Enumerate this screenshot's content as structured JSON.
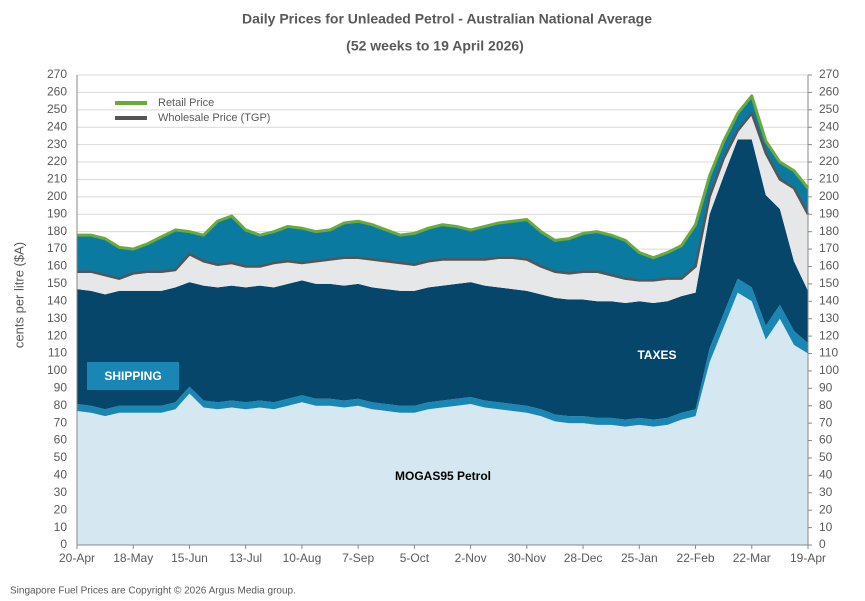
{
  "chart_data": {
    "type": "stacked-area",
    "title": "Daily Prices for Unleaded Petrol - Australian National Average",
    "subtitle": "(52 weeks to 19 April 2026)",
    "ylabel": "cents per litre ($A)",
    "footer": "Singapore Fuel Prices are Copyright © 2026 Argus Media group.",
    "categories": [
      "20-Apr",
      null,
      null,
      null,
      "18-May",
      null,
      null,
      null,
      "15-Jun",
      null,
      null,
      null,
      "13-Jul",
      null,
      null,
      null,
      "10-Aug",
      null,
      null,
      null,
      "7-Sep",
      null,
      null,
      null,
      "5-Oct",
      null,
      null,
      null,
      "2-Nov",
      null,
      null,
      null,
      "30-Nov",
      null,
      null,
      null,
      "28-Dec",
      null,
      null,
      null,
      "25-Jan",
      null,
      null,
      null,
      "22-Feb",
      null,
      null,
      null,
      "22-Mar",
      null,
      null,
      null,
      "19-Apr"
    ],
    "ylim": [
      0,
      270
    ],
    "yticks": [
      0,
      10,
      20,
      30,
      40,
      50,
      60,
      70,
      80,
      90,
      100,
      110,
      120,
      130,
      140,
      150,
      160,
      170,
      180,
      190,
      200,
      210,
      220,
      230,
      240,
      250,
      260,
      270
    ],
    "y2lim": [
      0,
      270
    ],
    "y2ticks": [
      0,
      10,
      20,
      30,
      40,
      50,
      60,
      70,
      80,
      90,
      100,
      110,
      120,
      130,
      140,
      150,
      160,
      170,
      180,
      190,
      200,
      210,
      220,
      230,
      240,
      250,
      260,
      270
    ],
    "grid": true,
    "legend": "upper left",
    "series": [
      {
        "name": "MOGAS95 Petrol",
        "color": "#d5e7f1",
        "stacked": true,
        "values": [
          77,
          76,
          74,
          76,
          76,
          76,
          76,
          78,
          87,
          79,
          78,
          79,
          78,
          79,
          78,
          80,
          82,
          80,
          80,
          79,
          80,
          78,
          77,
          76,
          76,
          78,
          79,
          80,
          81,
          79,
          78,
          77,
          76,
          74,
          71,
          70,
          70,
          69,
          69,
          68,
          69,
          68,
          69,
          72,
          74,
          105,
          125,
          145,
          140,
          118,
          130,
          115,
          110
        ]
      },
      {
        "name": "SHIPPING",
        "color": "#1a86b3",
        "stacked": true,
        "values": [
          4,
          4,
          4,
          4,
          4,
          4,
          4,
          4,
          4,
          4,
          4,
          4,
          4,
          4,
          4,
          4,
          4,
          4,
          4,
          4,
          4,
          4,
          4,
          4,
          4,
          4,
          4,
          4,
          4,
          4,
          4,
          4,
          4,
          4,
          4,
          4,
          4,
          4,
          4,
          4,
          4,
          4,
          4,
          4,
          4,
          8,
          8,
          8,
          8,
          8,
          8,
          8,
          6
        ]
      },
      {
        "name": "TAXES",
        "color": "#06466a",
        "stacked": true,
        "values": [
          66,
          66,
          66,
          66,
          66,
          66,
          66,
          66,
          60,
          66,
          66,
          66,
          66,
          66,
          66,
          66,
          66,
          66,
          66,
          66,
          66,
          66,
          66,
          66,
          66,
          66,
          66,
          66,
          66,
          66,
          66,
          66,
          66,
          66,
          67,
          67,
          67,
          67,
          67,
          67,
          67,
          67,
          67,
          67,
          67,
          77,
          79,
          80,
          85,
          75,
          55,
          40,
          30
        ]
      },
      {
        "name": "Wholesale Price (TGP)",
        "color": "#555555",
        "line": true,
        "fill_below": "#e6e7e9",
        "values": [
          157,
          157,
          155,
          153,
          156,
          157,
          157,
          158,
          167,
          163,
          161,
          162,
          160,
          160,
          162,
          163,
          162,
          163,
          164,
          165,
          165,
          164,
          163,
          162,
          161,
          163,
          164,
          164,
          164,
          164,
          165,
          165,
          164,
          160,
          157,
          156,
          157,
          157,
          155,
          153,
          152,
          152,
          153,
          153,
          160,
          200,
          222,
          238,
          248,
          225,
          210,
          205,
          190
        ]
      },
      {
        "name": "Retail Price",
        "color": "#6aaa3a",
        "line": true,
        "fill_below": "#0b7aa1",
        "values": [
          178,
          178,
          176,
          171,
          170,
          173,
          177,
          181,
          180,
          178,
          186,
          189,
          181,
          178,
          180,
          183,
          182,
          180,
          181,
          185,
          186,
          184,
          181,
          178,
          179,
          182,
          184,
          183,
          181,
          183,
          185,
          186,
          187,
          180,
          175,
          176,
          179,
          180,
          178,
          175,
          168,
          165,
          168,
          172,
          184,
          212,
          232,
          248,
          258,
          232,
          220,
          215,
          205
        ]
      }
    ]
  }
}
